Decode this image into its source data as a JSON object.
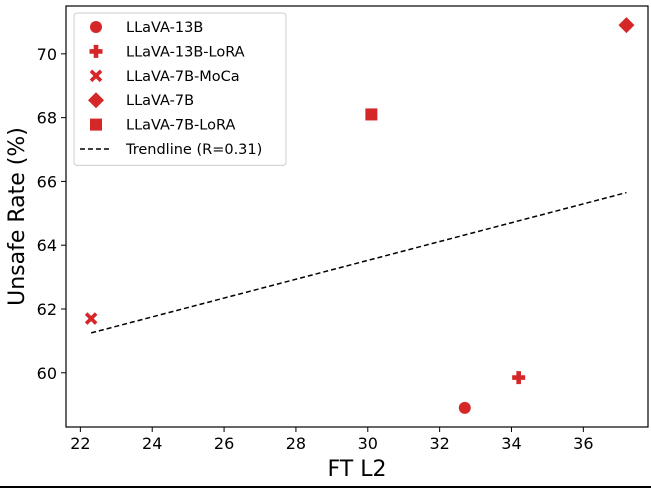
{
  "chart_data": {
    "type": "scatter",
    "title": "",
    "xlabel": "FT L2",
    "ylabel": "Unsafe Rate (%)",
    "xlim": [
      21.6,
      37.8
    ],
    "ylim": [
      58.3,
      71.5
    ],
    "xticks": [
      22,
      24,
      26,
      28,
      30,
      32,
      34,
      36
    ],
    "yticks": [
      60,
      62,
      64,
      66,
      68,
      70
    ],
    "grid": false,
    "legend_position": "upper-left",
    "marker_color": "#d62728",
    "series": [
      {
        "name": "LLaVA-13B",
        "marker": "circle",
        "x": 32.7,
        "y": 58.9
      },
      {
        "name": "LLaVA-13B-LoRA",
        "marker": "plus",
        "x": 34.2,
        "y": 59.85
      },
      {
        "name": "LLaVA-7B-MoCa",
        "marker": "x",
        "x": 22.3,
        "y": 61.7
      },
      {
        "name": "LLaVA-7B",
        "marker": "diamond",
        "x": 37.2,
        "y": 70.9
      },
      {
        "name": "LLaVA-7B-LoRA",
        "marker": "square",
        "x": 30.1,
        "y": 68.1
      }
    ],
    "trendline": {
      "name": "Trendline (R=0.31)",
      "style": "dashed",
      "color": "#000000",
      "x": [
        22.3,
        37.2
      ],
      "y": [
        61.25,
        65.65
      ]
    }
  }
}
